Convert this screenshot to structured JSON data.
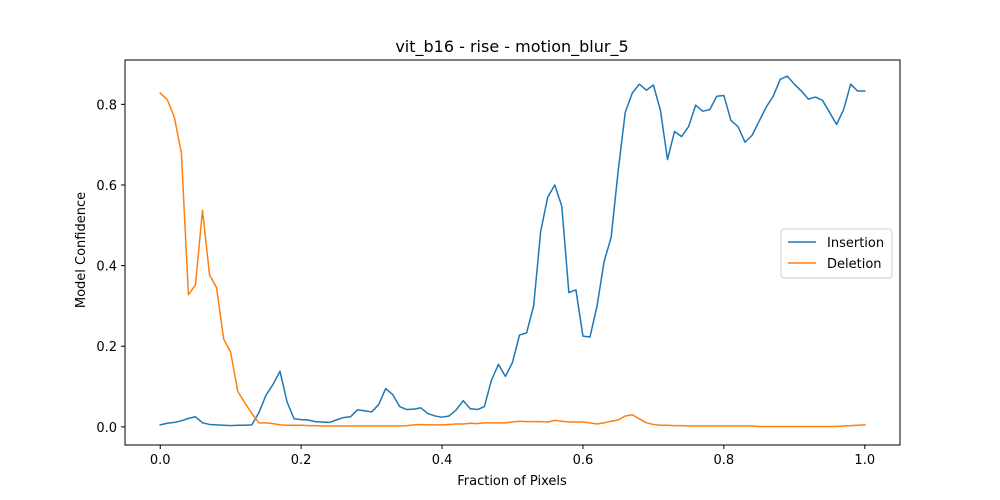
{
  "chart_data": {
    "type": "line",
    "title": "vit_b16 - rise - motion_blur_5",
    "xlabel": "Fraction of Pixels",
    "ylabel": "Model Confidence",
    "xlim": [
      -0.05,
      1.05
    ],
    "ylim": [
      -0.045,
      0.91
    ],
    "xticks": [
      0.0,
      0.2,
      0.4,
      0.6,
      0.8,
      1.0
    ],
    "xtick_labels": [
      "0.0",
      "0.2",
      "0.4",
      "0.6",
      "0.8",
      "1.0"
    ],
    "yticks": [
      0.0,
      0.2,
      0.4,
      0.6,
      0.8
    ],
    "ytick_labels": [
      "0.0",
      "0.2",
      "0.4",
      "0.6",
      "0.8"
    ],
    "grid": false,
    "legend_position": "center-right",
    "series": [
      {
        "name": "Insertion",
        "color": "#1f77b4",
        "x": [
          0.0,
          0.01,
          0.02,
          0.03,
          0.04,
          0.05,
          0.06,
          0.07,
          0.08,
          0.09,
          0.1,
          0.11,
          0.12,
          0.13,
          0.14,
          0.15,
          0.16,
          0.17,
          0.18,
          0.19,
          0.2,
          0.21,
          0.22,
          0.23,
          0.24,
          0.25,
          0.26,
          0.27,
          0.28,
          0.29,
          0.3,
          0.31,
          0.32,
          0.33,
          0.34,
          0.35,
          0.36,
          0.37,
          0.38,
          0.39,
          0.4,
          0.41,
          0.42,
          0.43,
          0.44,
          0.45,
          0.46,
          0.47,
          0.48,
          0.49,
          0.5,
          0.51,
          0.52,
          0.53,
          0.54,
          0.55,
          0.56,
          0.57,
          0.58,
          0.59,
          0.6,
          0.61,
          0.62,
          0.63,
          0.64,
          0.65,
          0.66,
          0.67,
          0.68,
          0.69,
          0.7,
          0.71,
          0.72,
          0.73,
          0.74,
          0.75,
          0.76,
          0.77,
          0.78,
          0.79,
          0.8,
          0.81,
          0.82,
          0.83,
          0.84,
          0.85,
          0.86,
          0.87,
          0.88,
          0.89,
          0.9,
          0.91,
          0.92,
          0.93,
          0.94,
          0.95,
          0.96,
          0.97,
          0.98,
          0.99,
          1.0
        ],
        "values": [
          0.005,
          0.009,
          0.011,
          0.015,
          0.021,
          0.025,
          0.01,
          0.006,
          0.005,
          0.004,
          0.003,
          0.004,
          0.004,
          0.005,
          0.035,
          0.078,
          0.105,
          0.138,
          0.062,
          0.02,
          0.018,
          0.017,
          0.013,
          0.012,
          0.011,
          0.017,
          0.023,
          0.025,
          0.042,
          0.04,
          0.037,
          0.055,
          0.095,
          0.08,
          0.05,
          0.043,
          0.044,
          0.047,
          0.033,
          0.027,
          0.024,
          0.027,
          0.042,
          0.065,
          0.045,
          0.043,
          0.05,
          0.115,
          0.155,
          0.125,
          0.16,
          0.228,
          0.233,
          0.3,
          0.485,
          0.57,
          0.6,
          0.547,
          0.333,
          0.34,
          0.225,
          0.223,
          0.3,
          0.41,
          0.47,
          0.635,
          0.78,
          0.828,
          0.85,
          0.835,
          0.848,
          0.785,
          0.663,
          0.733,
          0.72,
          0.745,
          0.798,
          0.783,
          0.787,
          0.82,
          0.822,
          0.76,
          0.745,
          0.706,
          0.723,
          0.758,
          0.793,
          0.82,
          0.862,
          0.87,
          0.85,
          0.833,
          0.813,
          0.818,
          0.81,
          0.78,
          0.75,
          0.787,
          0.85,
          0.833,
          0.833
        ]
      },
      {
        "name": "Deletion",
        "color": "#ff7f0e",
        "x": [
          0.0,
          0.01,
          0.02,
          0.03,
          0.04,
          0.05,
          0.06,
          0.07,
          0.08,
          0.09,
          0.1,
          0.11,
          0.12,
          0.13,
          0.14,
          0.15,
          0.16,
          0.17,
          0.18,
          0.19,
          0.2,
          0.21,
          0.22,
          0.23,
          0.24,
          0.25,
          0.26,
          0.27,
          0.28,
          0.29,
          0.3,
          0.31,
          0.32,
          0.33,
          0.34,
          0.35,
          0.36,
          0.37,
          0.38,
          0.39,
          0.4,
          0.41,
          0.42,
          0.43,
          0.44,
          0.45,
          0.46,
          0.47,
          0.48,
          0.49,
          0.5,
          0.51,
          0.52,
          0.53,
          0.54,
          0.55,
          0.56,
          0.57,
          0.58,
          0.59,
          0.6,
          0.61,
          0.62,
          0.63,
          0.64,
          0.65,
          0.66,
          0.67,
          0.68,
          0.69,
          0.7,
          0.71,
          0.72,
          0.73,
          0.74,
          0.75,
          0.76,
          0.77,
          0.78,
          0.79,
          0.8,
          0.81,
          0.82,
          0.83,
          0.84,
          0.85,
          0.86,
          0.87,
          0.88,
          0.89,
          0.9,
          0.91,
          0.92,
          0.93,
          0.94,
          0.95,
          0.96,
          0.97,
          0.98,
          0.99,
          1.0
        ],
        "values": [
          0.828,
          0.812,
          0.768,
          0.68,
          0.328,
          0.352,
          0.537,
          0.377,
          0.345,
          0.218,
          0.185,
          0.088,
          0.06,
          0.033,
          0.01,
          0.01,
          0.008,
          0.005,
          0.004,
          0.004,
          0.004,
          0.003,
          0.003,
          0.002,
          0.002,
          0.002,
          0.002,
          0.002,
          0.002,
          0.002,
          0.002,
          0.002,
          0.002,
          0.002,
          0.002,
          0.003,
          0.005,
          0.006,
          0.005,
          0.005,
          0.005,
          0.006,
          0.007,
          0.007,
          0.009,
          0.008,
          0.01,
          0.01,
          0.01,
          0.01,
          0.012,
          0.014,
          0.013,
          0.013,
          0.013,
          0.012,
          0.016,
          0.014,
          0.012,
          0.012,
          0.012,
          0.01,
          0.007,
          0.01,
          0.014,
          0.017,
          0.027,
          0.03,
          0.02,
          0.01,
          0.006,
          0.004,
          0.004,
          0.003,
          0.003,
          0.002,
          0.002,
          0.002,
          0.002,
          0.002,
          0.002,
          0.002,
          0.002,
          0.002,
          0.002,
          0.001,
          0.001,
          0.001,
          0.001,
          0.001,
          0.001,
          0.001,
          0.001,
          0.001,
          0.001,
          0.001,
          0.001,
          0.002,
          0.003,
          0.004,
          0.005
        ]
      }
    ]
  }
}
